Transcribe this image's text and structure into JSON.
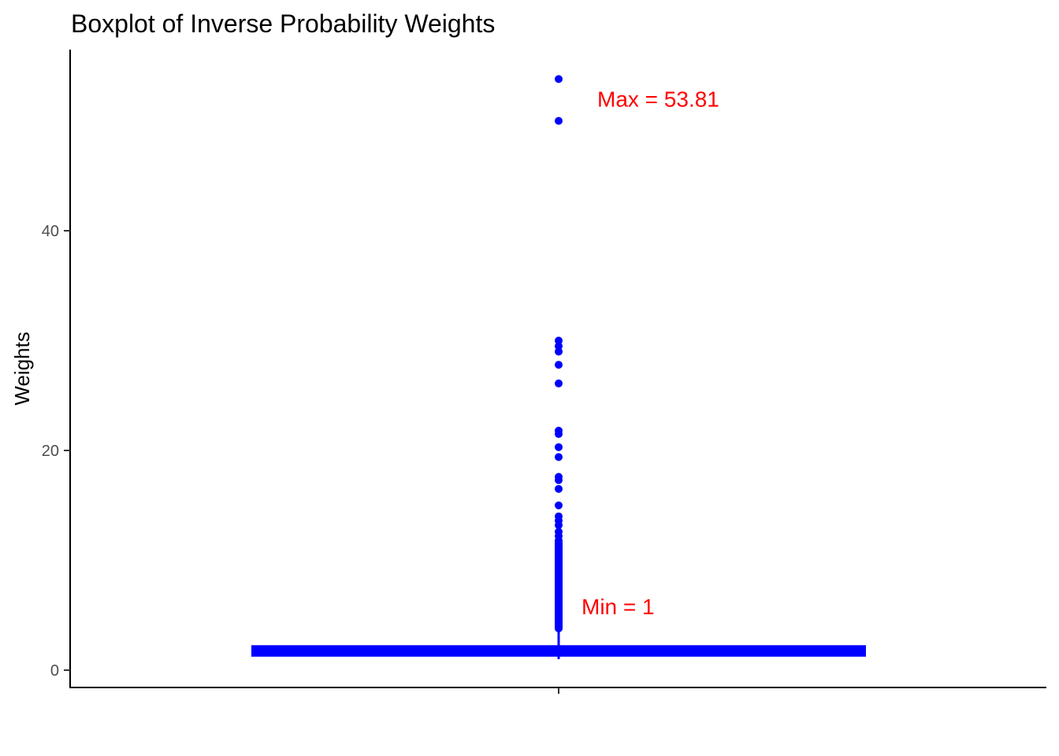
{
  "chart_data": {
    "type": "boxplot",
    "title": "Boxplot of Inverse Probability Weights",
    "xlabel": "",
    "ylabel": "Weights",
    "ylim": [
      -2,
      56
    ],
    "y_ticks": [
      0,
      20,
      40
    ],
    "grid": false,
    "legend": "none",
    "box": {
      "lower_whisker": 1.0,
      "q1": 1.3,
      "median": 1.7,
      "q3": 2.2,
      "upper_whisker": 3.5
    },
    "outliers": [
      53.81,
      50.0,
      30.0,
      29.5,
      29.0,
      27.8,
      26.1,
      21.8,
      21.5,
      20.3,
      19.4,
      17.6,
      17.3,
      16.5,
      15.0,
      14.0,
      13.6,
      13.2,
      12.6,
      12.2,
      11.8,
      11.4,
      11.0,
      10.6,
      10.2,
      9.8,
      9.4,
      9.0,
      8.6,
      8.2,
      7.8,
      7.4,
      7.0,
      6.6,
      6.2,
      5.8,
      5.4,
      5.0,
      4.6,
      4.2,
      3.8
    ],
    "annotations": [
      {
        "text": "Max = 53.81",
        "y": 52.0,
        "color": "#ff0000"
      },
      {
        "text": "Min = 1",
        "y": 5.8,
        "color": "#ff0000"
      }
    ],
    "colors": {
      "box": "#0000ff",
      "points": "#0000ff",
      "annotation": "#ff0000"
    }
  }
}
